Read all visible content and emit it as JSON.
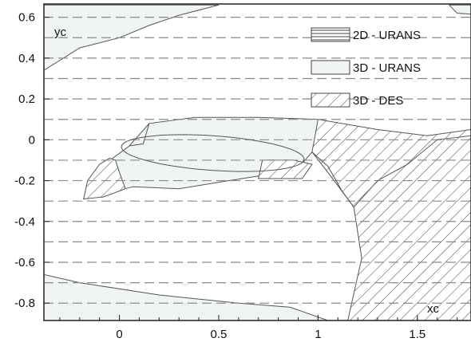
{
  "chart_data": {
    "type": "area",
    "title": "",
    "xlabel": "xc",
    "ylabel": "yc",
    "xlim": [
      -0.38,
      1.77
    ],
    "ylim": [
      -0.885,
      0.665
    ],
    "xticks": [
      0,
      0.5,
      1,
      1.5
    ],
    "xtick_labels": [
      "0",
      "0.5",
      "1",
      "1.5"
    ],
    "yticks": [
      0.6,
      0.4,
      0.2,
      0,
      -0.2,
      -0.4,
      -0.6,
      -0.8
    ],
    "ytick_labels": [
      "0.6",
      "0.4",
      "0.2",
      "0",
      "-0.2",
      "-0.4",
      "-0.6",
      "-0.8"
    ],
    "grid": "dashed-horizontal",
    "legend_position": "top-right",
    "colors": {
      "fill": "#f1f5f1",
      "line": "#555555",
      "dash": "#8a8a8a",
      "hatch": "#444444"
    },
    "series": [
      {
        "name": "2D - URANS",
        "pattern": "horizontal-hatch",
        "regions": []
      },
      {
        "name": "3D - URANS",
        "pattern": "light-fill",
        "regions": [
          {
            "region": "upper-left-wall",
            "points": [
              [
                -0.38,
                0.66
              ],
              [
                0.08,
                0.66
              ],
              [
                0.5,
                0.66
              ],
              [
                0.3,
                0.61
              ],
              [
                0.15,
                0.56
              ],
              [
                0,
                0.5
              ],
              [
                -0.2,
                0.45
              ],
              [
                -0.38,
                0.34
              ]
            ]
          },
          {
            "region": "lower-wall",
            "points": [
              [
                -0.38,
                -0.66
              ],
              [
                -0.2,
                -0.7
              ],
              [
                0.2,
                -0.76
              ],
              [
                0.6,
                -0.8
              ],
              [
                0.86,
                -0.82
              ],
              [
                1.05,
                -0.885
              ],
              [
                -0.38,
                -0.885
              ]
            ]
          },
          {
            "region": "upper-right-wall",
            "points": [
              [
                1.66,
                0.66
              ],
              [
                1.77,
                0.66
              ],
              [
                1.77,
                0.615
              ],
              [
                1.7,
                0.62
              ]
            ]
          },
          {
            "region": "blade-shell",
            "points": [
              [
                -0.18,
                -0.29
              ],
              [
                -0.17,
                -0.26
              ],
              [
                -0.13,
                -0.16
              ],
              [
                0.05,
                -0.03
              ],
              [
                0.15,
                0.08
              ],
              [
                0.38,
                0.11
              ],
              [
                0.7,
                0.11
              ],
              [
                1.0,
                0.1
              ],
              [
                1.03,
                0.09
              ],
              [
                0.97,
                -0.06
              ],
              [
                0.9,
                -0.14
              ],
              [
                0.75,
                -0.17
              ],
              [
                0.55,
                -0.2
              ],
              [
                0.3,
                -0.24
              ],
              [
                0.07,
                -0.23
              ],
              [
                -0.18,
                -0.29
              ]
            ]
          }
        ]
      },
      {
        "name": "3D - DES",
        "pattern": "diagonal-hatch",
        "regions": [
          {
            "region": "leading-edge",
            "points": [
              [
                -0.18,
                -0.29
              ],
              [
                -0.08,
                -0.28
              ],
              [
                0.03,
                -0.24
              ],
              [
                0.0,
                -0.16
              ],
              [
                -0.02,
                -0.1
              ],
              [
                -0.05,
                -0.09
              ],
              [
                -0.1,
                -0.12
              ],
              [
                -0.16,
                -0.2
              ],
              [
                -0.18,
                -0.29
              ]
            ]
          },
          {
            "region": "mid-gap",
            "points": [
              [
                0.7,
                -0.19
              ],
              [
                0.92,
                -0.19
              ],
              [
                0.97,
                -0.12
              ],
              [
                0.88,
                -0.1
              ],
              [
                0.72,
                -0.1
              ],
              [
                0.7,
                -0.19
              ]
            ]
          },
          {
            "region": "wake",
            "points": [
              [
                1.0,
                0.1
              ],
              [
                1.3,
                0.05
              ],
              [
                1.55,
                0.02
              ],
              [
                1.77,
                0.05
              ],
              [
                1.77,
                -0.885
              ],
              [
                1.15,
                -0.885
              ],
              [
                1.22,
                -0.58
              ],
              [
                1.18,
                -0.33
              ],
              [
                1.05,
                -0.16
              ],
              [
                0.97,
                -0.06
              ],
              [
                1.0,
                0.1
              ]
            ]
          }
        ]
      }
    ]
  }
}
